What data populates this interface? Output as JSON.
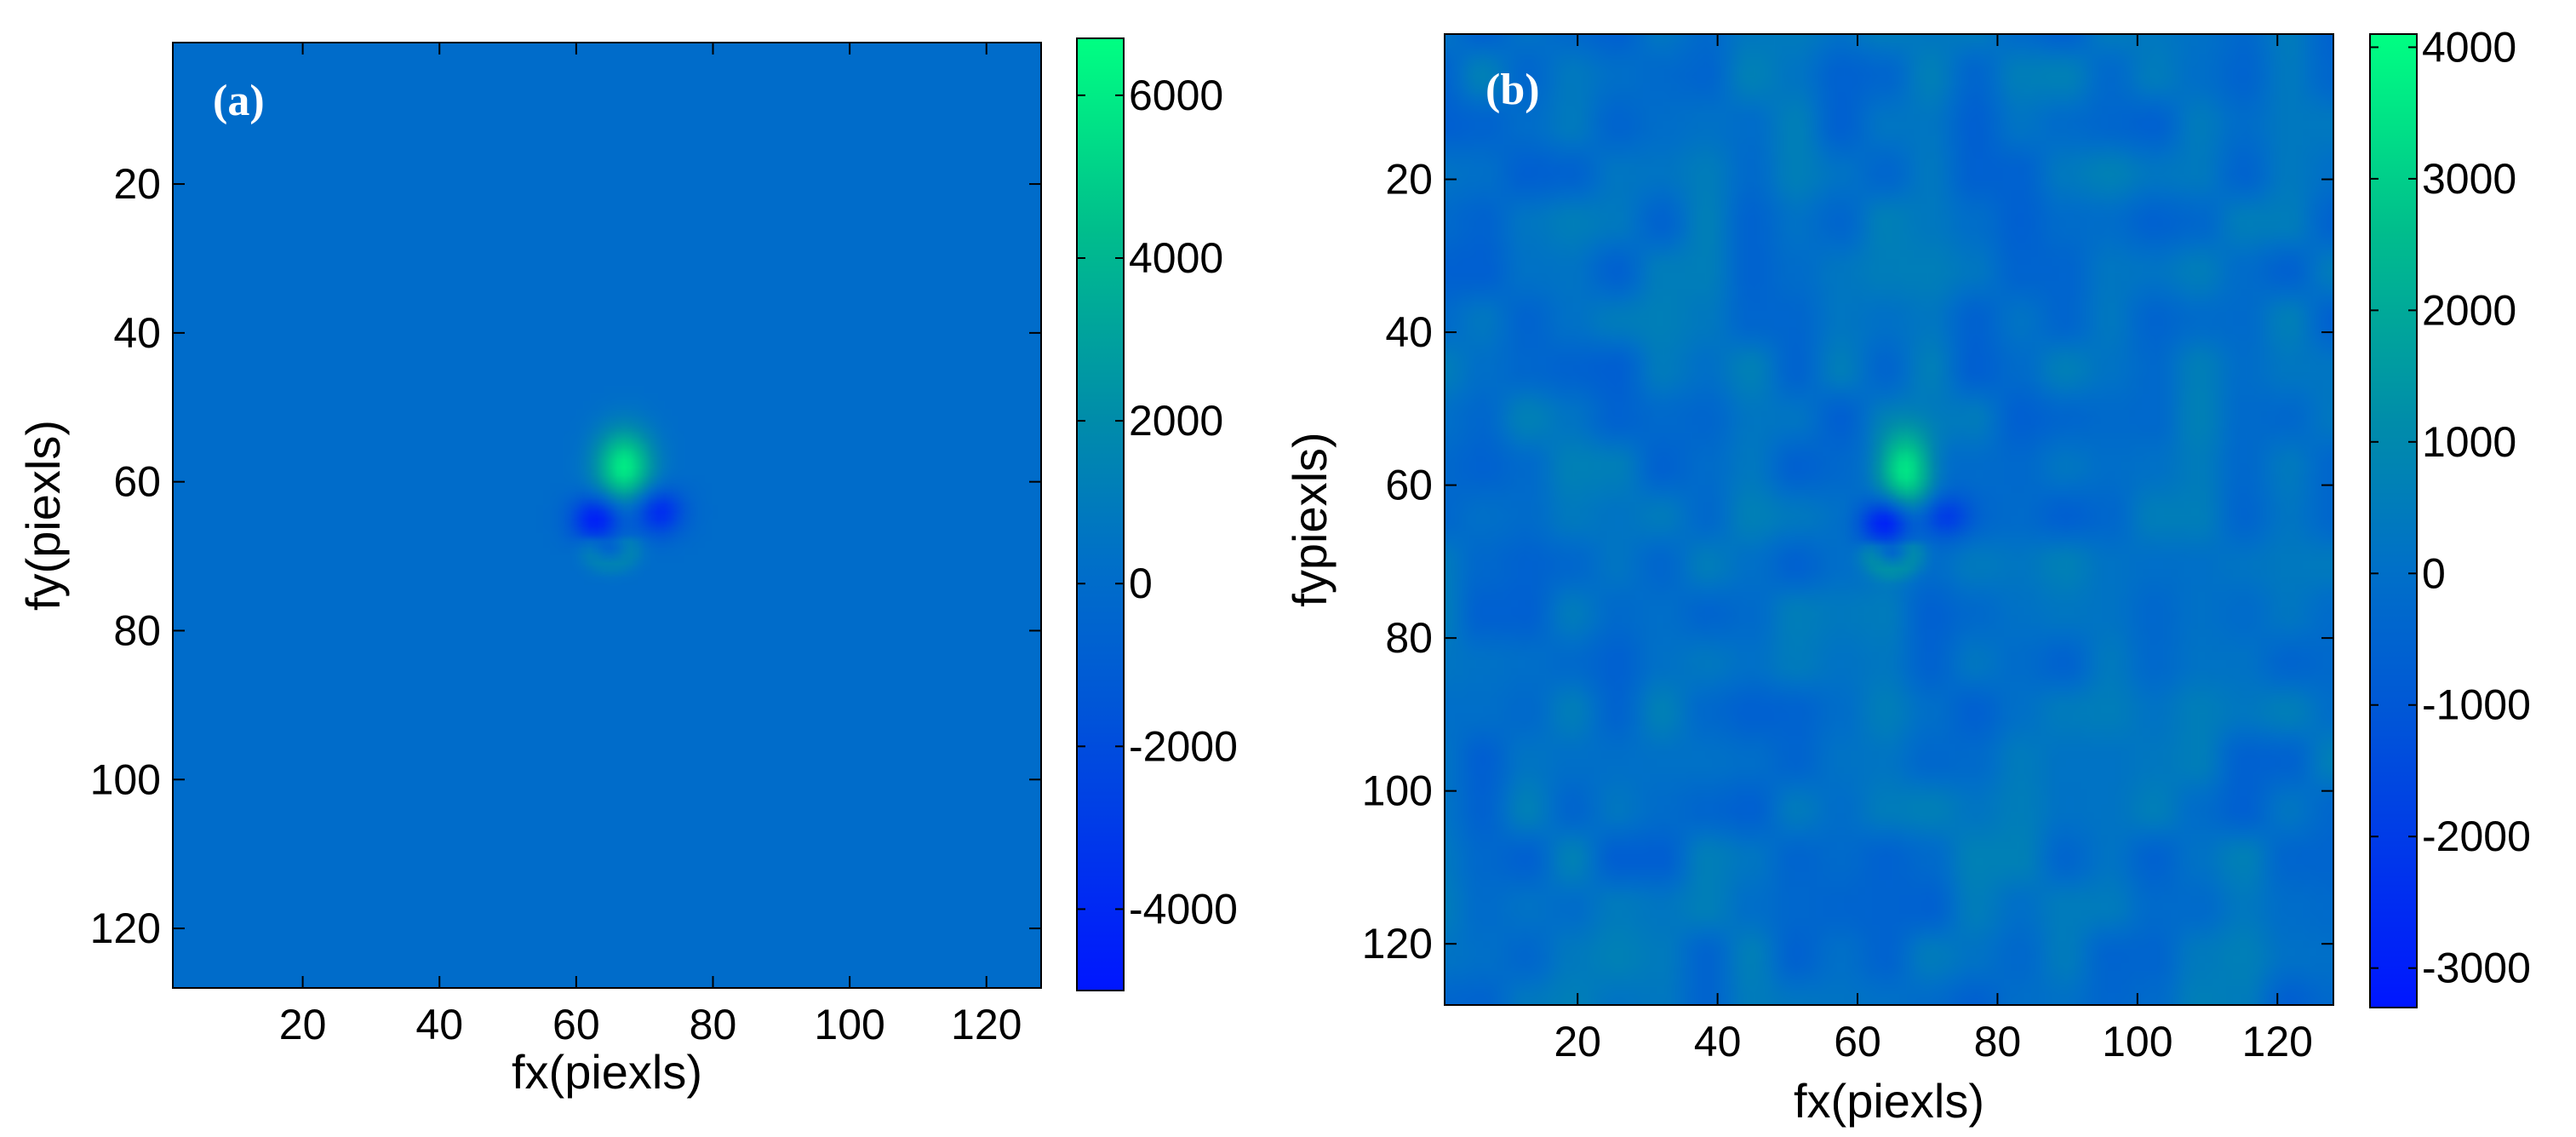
{
  "chart_data": [
    {
      "type": "heatmap",
      "panel_label": "(a)",
      "xlabel": "fx(piexls)",
      "ylabel": "fy(piexls)",
      "xlim": [
        1,
        128
      ],
      "ylim": [
        1,
        128
      ],
      "y_reversed": true,
      "x_ticks": [
        20,
        40,
        60,
        80,
        100,
        120
      ],
      "y_ticks": [
        20,
        40,
        60,
        80,
        100,
        120
      ],
      "colorbar": {
        "min": -5000,
        "max": 6700,
        "ticks": [
          6000,
          4000,
          2000,
          0,
          -2000,
          -4000
        ]
      },
      "background_value": 0,
      "noise": false,
      "features": [
        {
          "kind": "peak",
          "fx": 67,
          "fy": 58,
          "value": 6000
        },
        {
          "kind": "trough",
          "fx": 63,
          "fy": 65,
          "value": -4800
        },
        {
          "kind": "trough",
          "fx": 72,
          "fy": 64,
          "value": -4000
        },
        {
          "kind": "ring",
          "fx": 65,
          "fy": 69,
          "value": 1500
        }
      ]
    },
    {
      "type": "heatmap",
      "panel_label": "(b)",
      "xlabel": "fx(piexls)",
      "ylabel": "fypiexls)",
      "xlim": [
        1,
        128
      ],
      "ylim": [
        1,
        128
      ],
      "y_reversed": true,
      "x_ticks": [
        20,
        40,
        60,
        80,
        100,
        120
      ],
      "y_ticks": [
        20,
        40,
        60,
        80,
        100,
        120
      ],
      "colorbar": {
        "min": -3300,
        "max": 4100,
        "ticks": [
          4000,
          3000,
          2000,
          1000,
          0,
          -1000,
          -2000,
          -3000
        ]
      },
      "background_value": 0,
      "noise": true,
      "features": [
        {
          "kind": "peak",
          "fx": 67,
          "fy": 58,
          "value": 4000
        },
        {
          "kind": "trough",
          "fx": 64,
          "fy": 65,
          "value": -3000
        },
        {
          "kind": "trough",
          "fx": 72,
          "fy": 64,
          "value": -2500
        },
        {
          "kind": "ring",
          "fx": 65,
          "fy": 69,
          "value": 1200
        }
      ]
    }
  ]
}
